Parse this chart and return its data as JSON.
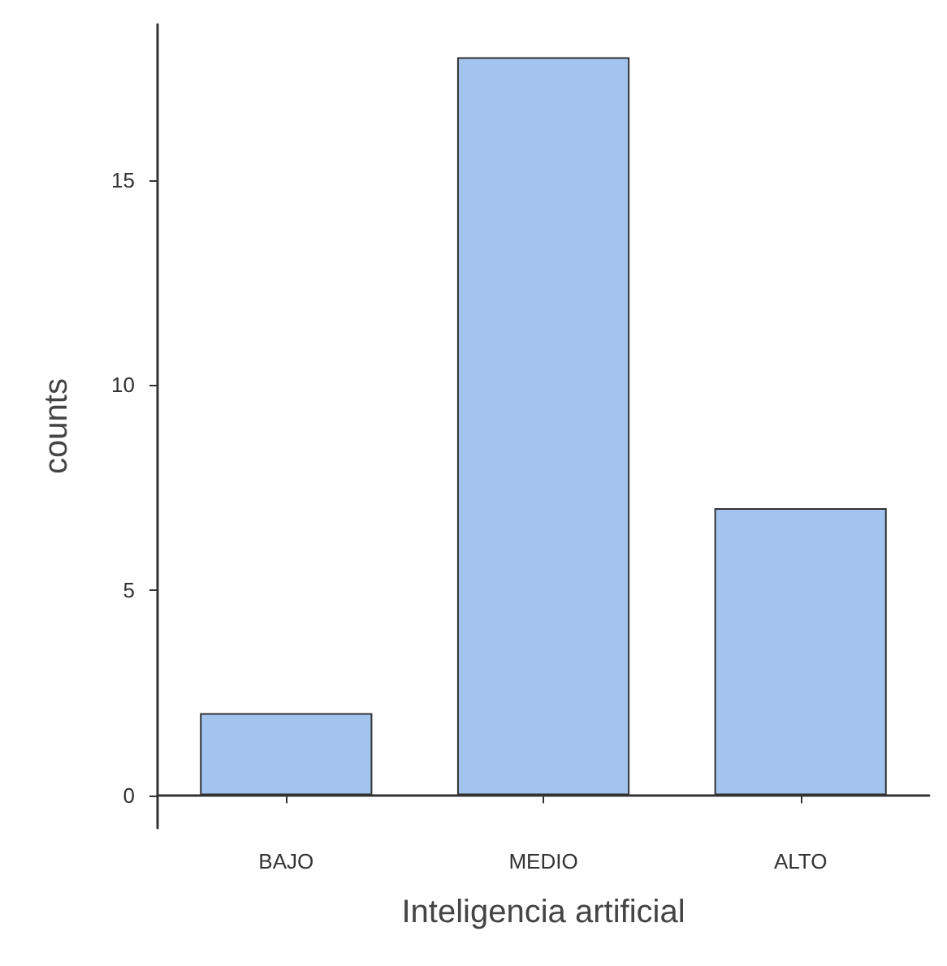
{
  "chart_data": {
    "type": "bar",
    "xlabel": "Inteligencia artificial",
    "ylabel": "counts",
    "categories": [
      "BAJO",
      "MEDIO",
      "ALTO"
    ],
    "values": [
      2,
      18,
      7
    ],
    "color": "#a4c4f0",
    "ylim": [
      -0.8,
      18.8
    ],
    "yticks": [
      0,
      5,
      10,
      15
    ],
    "grid": false
  }
}
